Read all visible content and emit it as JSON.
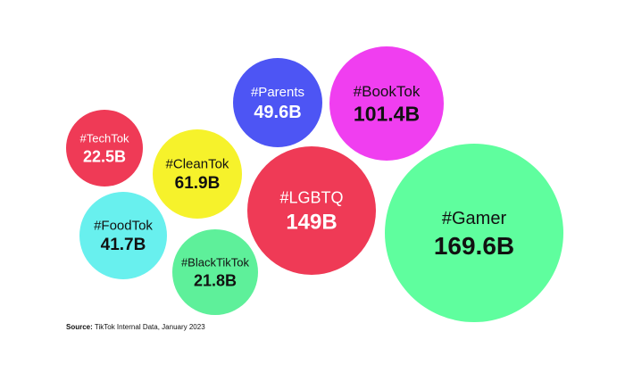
{
  "chart_data": {
    "type": "bubble",
    "title": "",
    "xlabel": "",
    "ylabel": "",
    "categories": [
      "#Gamer",
      "#LGBTQ",
      "#BookTok",
      "#CleanTok",
      "#Parents",
      "#FoodTok",
      "#TechTok",
      "#BlackTikTok"
    ],
    "values": [
      169.6,
      149,
      101.4,
      61.9,
      49.6,
      41.7,
      22.5,
      21.8
    ],
    "labels": [
      "169.6B",
      "149B",
      "101.4B",
      "61.9B",
      "49.6B",
      "41.7B",
      "22.5B",
      "21.8B"
    ],
    "colors": [
      "#5ffe9e",
      "#ef3a56",
      "#f03ef0",
      "#f6f22b",
      "#4d55f4",
      "#68f0ee",
      "#ef3a56",
      "#5ef09a"
    ],
    "text_colors": [
      "#111111",
      "#ffffff",
      "#111111",
      "#111111",
      "#ffffff",
      "#111111",
      "#ffffff",
      "#111111"
    ],
    "grid": false,
    "legend": "none"
  },
  "source": {
    "label": "Source:",
    "text": " TikTok Internal Data, January 2023"
  }
}
